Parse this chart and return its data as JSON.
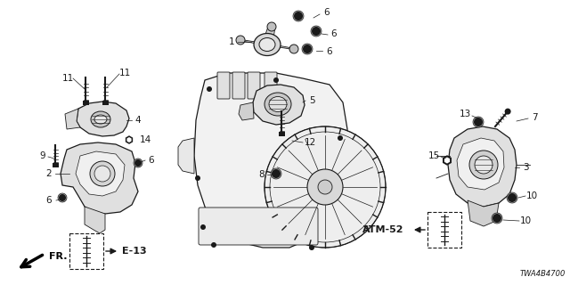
{
  "bg_color": "#ffffff",
  "part_number": "TWA4B4700",
  "fr_label": "FR.",
  "e13_label": "E-13",
  "atm52_label": "ATM-52",
  "gray": "#1a1a1a",
  "figsize": [
    6.4,
    3.2
  ],
  "dpi": 100
}
